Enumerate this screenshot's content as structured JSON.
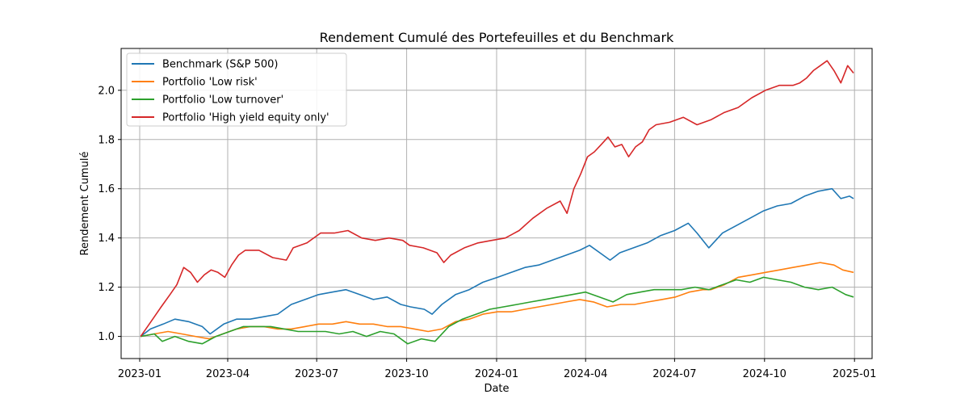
{
  "chart_data": {
    "type": "line",
    "title": "Rendement Cumulé des Portefeuilles et du Benchmark",
    "xlabel": "Date",
    "ylabel": "Rendement Cumulé",
    "xlim": [
      "2022-12-13",
      "2025-01-19"
    ],
    "ylim": [
      0.91,
      2.17
    ],
    "grid": true,
    "legend_position": "top-left",
    "x_ticks": [
      {
        "value": "2023-01-01",
        "label": "2023-01"
      },
      {
        "value": "2023-04-01",
        "label": "2023-04"
      },
      {
        "value": "2023-07-01",
        "label": "2023-07"
      },
      {
        "value": "2023-10-01",
        "label": "2023-10"
      },
      {
        "value": "2024-01-01",
        "label": "2024-01"
      },
      {
        "value": "2024-04-01",
        "label": "2024-04"
      },
      {
        "value": "2024-07-01",
        "label": "2024-07"
      },
      {
        "value": "2024-10-01",
        "label": "2024-10"
      },
      {
        "value": "2025-01-01",
        "label": "2025-01"
      }
    ],
    "y_ticks": [
      {
        "value": 1.0,
        "label": "1.0"
      },
      {
        "value": 1.2,
        "label": "1.2"
      },
      {
        "value": 1.4,
        "label": "1.4"
      },
      {
        "value": 1.6,
        "label": "1.6"
      },
      {
        "value": 1.8,
        "label": "1.8"
      },
      {
        "value": 2.0,
        "label": "2.0"
      }
    ],
    "series": [
      {
        "name": "Benchmark (S&P 500)",
        "color": "#1f77b4",
        "points": [
          [
            "2023-01-02",
            1.0
          ],
          [
            "2023-01-12",
            1.03
          ],
          [
            "2023-01-25",
            1.05
          ],
          [
            "2023-02-06",
            1.07
          ],
          [
            "2023-02-20",
            1.06
          ],
          [
            "2023-03-06",
            1.04
          ],
          [
            "2023-03-14",
            1.01
          ],
          [
            "2023-03-28",
            1.05
          ],
          [
            "2023-04-10",
            1.07
          ],
          [
            "2023-04-24",
            1.07
          ],
          [
            "2023-05-08",
            1.08
          ],
          [
            "2023-05-22",
            1.09
          ],
          [
            "2023-06-05",
            1.13
          ],
          [
            "2023-06-19",
            1.15
          ],
          [
            "2023-07-03",
            1.17
          ],
          [
            "2023-07-17",
            1.18
          ],
          [
            "2023-07-31",
            1.19
          ],
          [
            "2023-08-14",
            1.17
          ],
          [
            "2023-08-28",
            1.15
          ],
          [
            "2023-09-11",
            1.16
          ],
          [
            "2023-09-25",
            1.13
          ],
          [
            "2023-10-05",
            1.12
          ],
          [
            "2023-10-19",
            1.11
          ],
          [
            "2023-10-27",
            1.09
          ],
          [
            "2023-11-06",
            1.13
          ],
          [
            "2023-11-20",
            1.17
          ],
          [
            "2023-12-04",
            1.19
          ],
          [
            "2023-12-18",
            1.22
          ],
          [
            "2024-01-02",
            1.24
          ],
          [
            "2024-01-16",
            1.26
          ],
          [
            "2024-01-30",
            1.28
          ],
          [
            "2024-02-13",
            1.29
          ],
          [
            "2024-02-27",
            1.31
          ],
          [
            "2024-03-12",
            1.33
          ],
          [
            "2024-03-26",
            1.35
          ],
          [
            "2024-04-05",
            1.37
          ],
          [
            "2024-04-19",
            1.33
          ],
          [
            "2024-04-26",
            1.31
          ],
          [
            "2024-05-06",
            1.34
          ],
          [
            "2024-05-20",
            1.36
          ],
          [
            "2024-06-03",
            1.38
          ],
          [
            "2024-06-17",
            1.41
          ],
          [
            "2024-07-01",
            1.43
          ],
          [
            "2024-07-15",
            1.46
          ],
          [
            "2024-07-24",
            1.42
          ],
          [
            "2024-08-05",
            1.36
          ],
          [
            "2024-08-19",
            1.42
          ],
          [
            "2024-09-02",
            1.45
          ],
          [
            "2024-09-16",
            1.48
          ],
          [
            "2024-09-30",
            1.51
          ],
          [
            "2024-10-14",
            1.53
          ],
          [
            "2024-10-28",
            1.54
          ],
          [
            "2024-11-11",
            1.57
          ],
          [
            "2024-11-25",
            1.59
          ],
          [
            "2024-12-09",
            1.6
          ],
          [
            "2024-12-18",
            1.56
          ],
          [
            "2024-12-27",
            1.57
          ],
          [
            "2024-12-31",
            1.56
          ]
        ]
      },
      {
        "name": "Portfolio 'Low risk'",
        "color": "#ff7f0e",
        "points": [
          [
            "2023-01-02",
            1.0
          ],
          [
            "2023-01-16",
            1.01
          ],
          [
            "2023-01-30",
            1.02
          ],
          [
            "2023-02-13",
            1.01
          ],
          [
            "2023-02-27",
            1.0
          ],
          [
            "2023-03-13",
            0.99
          ],
          [
            "2023-03-27",
            1.01
          ],
          [
            "2023-04-10",
            1.03
          ],
          [
            "2023-04-24",
            1.04
          ],
          [
            "2023-05-08",
            1.04
          ],
          [
            "2023-05-22",
            1.03
          ],
          [
            "2023-06-05",
            1.03
          ],
          [
            "2023-06-19",
            1.04
          ],
          [
            "2023-07-03",
            1.05
          ],
          [
            "2023-07-17",
            1.05
          ],
          [
            "2023-07-31",
            1.06
          ],
          [
            "2023-08-14",
            1.05
          ],
          [
            "2023-08-28",
            1.05
          ],
          [
            "2023-09-11",
            1.04
          ],
          [
            "2023-09-25",
            1.04
          ],
          [
            "2023-10-09",
            1.03
          ],
          [
            "2023-10-23",
            1.02
          ],
          [
            "2023-11-06",
            1.03
          ],
          [
            "2023-11-20",
            1.06
          ],
          [
            "2023-12-04",
            1.07
          ],
          [
            "2023-12-18",
            1.09
          ],
          [
            "2024-01-02",
            1.1
          ],
          [
            "2024-01-16",
            1.1
          ],
          [
            "2024-01-30",
            1.11
          ],
          [
            "2024-02-13",
            1.12
          ],
          [
            "2024-02-27",
            1.13
          ],
          [
            "2024-03-12",
            1.14
          ],
          [
            "2024-03-26",
            1.15
          ],
          [
            "2024-04-09",
            1.14
          ],
          [
            "2024-04-23",
            1.12
          ],
          [
            "2024-05-07",
            1.13
          ],
          [
            "2024-05-21",
            1.13
          ],
          [
            "2024-06-04",
            1.14
          ],
          [
            "2024-06-18",
            1.15
          ],
          [
            "2024-07-02",
            1.16
          ],
          [
            "2024-07-16",
            1.18
          ],
          [
            "2024-07-30",
            1.19
          ],
          [
            "2024-08-07",
            1.19
          ],
          [
            "2024-08-21",
            1.21
          ],
          [
            "2024-09-04",
            1.24
          ],
          [
            "2024-09-18",
            1.25
          ],
          [
            "2024-10-02",
            1.26
          ],
          [
            "2024-10-16",
            1.27
          ],
          [
            "2024-10-30",
            1.28
          ],
          [
            "2024-11-13",
            1.29
          ],
          [
            "2024-11-27",
            1.3
          ],
          [
            "2024-12-11",
            1.29
          ],
          [
            "2024-12-20",
            1.27
          ],
          [
            "2024-12-31",
            1.26
          ]
        ]
      },
      {
        "name": "Portfolio 'Low turnover'",
        "color": "#2ca02c",
        "points": [
          [
            "2023-01-02",
            1.0
          ],
          [
            "2023-01-16",
            1.01
          ],
          [
            "2023-01-24",
            0.98
          ],
          [
            "2023-02-06",
            1.0
          ],
          [
            "2023-02-20",
            0.98
          ],
          [
            "2023-03-06",
            0.97
          ],
          [
            "2023-03-20",
            1.0
          ],
          [
            "2023-04-03",
            1.02
          ],
          [
            "2023-04-17",
            1.04
          ],
          [
            "2023-05-01",
            1.04
          ],
          [
            "2023-05-15",
            1.04
          ],
          [
            "2023-05-29",
            1.03
          ],
          [
            "2023-06-12",
            1.02
          ],
          [
            "2023-06-26",
            1.02
          ],
          [
            "2023-07-10",
            1.02
          ],
          [
            "2023-07-24",
            1.01
          ],
          [
            "2023-08-07",
            1.02
          ],
          [
            "2023-08-21",
            1.0
          ],
          [
            "2023-09-04",
            1.02
          ],
          [
            "2023-09-18",
            1.01
          ],
          [
            "2023-10-02",
            0.97
          ],
          [
            "2023-10-16",
            0.99
          ],
          [
            "2023-10-30",
            0.98
          ],
          [
            "2023-11-13",
            1.04
          ],
          [
            "2023-11-27",
            1.07
          ],
          [
            "2023-12-11",
            1.09
          ],
          [
            "2023-12-25",
            1.11
          ],
          [
            "2024-01-08",
            1.12
          ],
          [
            "2024-01-22",
            1.13
          ],
          [
            "2024-02-05",
            1.14
          ],
          [
            "2024-02-19",
            1.15
          ],
          [
            "2024-03-04",
            1.16
          ],
          [
            "2024-03-18",
            1.17
          ],
          [
            "2024-04-01",
            1.18
          ],
          [
            "2024-04-15",
            1.16
          ],
          [
            "2024-04-29",
            1.14
          ],
          [
            "2024-05-13",
            1.17
          ],
          [
            "2024-05-27",
            1.18
          ],
          [
            "2024-06-10",
            1.19
          ],
          [
            "2024-06-24",
            1.19
          ],
          [
            "2024-07-08",
            1.19
          ],
          [
            "2024-07-22",
            1.2
          ],
          [
            "2024-08-05",
            1.19
          ],
          [
            "2024-08-19",
            1.21
          ],
          [
            "2024-09-02",
            1.23
          ],
          [
            "2024-09-16",
            1.22
          ],
          [
            "2024-09-30",
            1.24
          ],
          [
            "2024-10-14",
            1.23
          ],
          [
            "2024-10-28",
            1.22
          ],
          [
            "2024-11-11",
            1.2
          ],
          [
            "2024-11-25",
            1.19
          ],
          [
            "2024-12-09",
            1.2
          ],
          [
            "2024-12-23",
            1.17
          ],
          [
            "2024-12-31",
            1.16
          ]
        ]
      },
      {
        "name": "Portfolio 'High yield equity only'",
        "color": "#d62728",
        "points": [
          [
            "2023-01-02",
            1.0
          ],
          [
            "2023-01-09",
            1.04
          ],
          [
            "2023-01-16",
            1.08
          ],
          [
            "2023-01-23",
            1.12
          ],
          [
            "2023-02-01",
            1.17
          ],
          [
            "2023-02-08",
            1.21
          ],
          [
            "2023-02-15",
            1.28
          ],
          [
            "2023-02-22",
            1.26
          ],
          [
            "2023-03-01",
            1.22
          ],
          [
            "2023-03-08",
            1.25
          ],
          [
            "2023-03-15",
            1.27
          ],
          [
            "2023-03-22",
            1.26
          ],
          [
            "2023-03-29",
            1.24
          ],
          [
            "2023-04-05",
            1.29
          ],
          [
            "2023-04-12",
            1.33
          ],
          [
            "2023-04-19",
            1.35
          ],
          [
            "2023-05-03",
            1.35
          ],
          [
            "2023-05-17",
            1.32
          ],
          [
            "2023-05-31",
            1.31
          ],
          [
            "2023-06-07",
            1.36
          ],
          [
            "2023-06-21",
            1.38
          ],
          [
            "2023-07-05",
            1.42
          ],
          [
            "2023-07-19",
            1.42
          ],
          [
            "2023-08-02",
            1.43
          ],
          [
            "2023-08-16",
            1.4
          ],
          [
            "2023-08-30",
            1.39
          ],
          [
            "2023-09-13",
            1.4
          ],
          [
            "2023-09-27",
            1.39
          ],
          [
            "2023-10-04",
            1.37
          ],
          [
            "2023-10-18",
            1.36
          ],
          [
            "2023-11-01",
            1.34
          ],
          [
            "2023-11-08",
            1.3
          ],
          [
            "2023-11-15",
            1.33
          ],
          [
            "2023-11-29",
            1.36
          ],
          [
            "2023-12-13",
            1.38
          ],
          [
            "2023-12-27",
            1.39
          ],
          [
            "2024-01-10",
            1.4
          ],
          [
            "2024-01-24",
            1.43
          ],
          [
            "2024-02-07",
            1.48
          ],
          [
            "2024-02-21",
            1.52
          ],
          [
            "2024-03-06",
            1.55
          ],
          [
            "2024-03-13",
            1.5
          ],
          [
            "2024-03-20",
            1.6
          ],
          [
            "2024-03-27",
            1.66
          ],
          [
            "2024-04-03",
            1.73
          ],
          [
            "2024-04-10",
            1.75
          ],
          [
            "2024-04-17",
            1.78
          ],
          [
            "2024-04-24",
            1.81
          ],
          [
            "2024-05-01",
            1.77
          ],
          [
            "2024-05-08",
            1.78
          ],
          [
            "2024-05-15",
            1.73
          ],
          [
            "2024-05-22",
            1.77
          ],
          [
            "2024-05-29",
            1.79
          ],
          [
            "2024-06-05",
            1.84
          ],
          [
            "2024-06-12",
            1.86
          ],
          [
            "2024-06-26",
            1.87
          ],
          [
            "2024-07-10",
            1.89
          ],
          [
            "2024-07-24",
            1.86
          ],
          [
            "2024-08-07",
            1.88
          ],
          [
            "2024-08-21",
            1.91
          ],
          [
            "2024-09-04",
            1.93
          ],
          [
            "2024-09-18",
            1.97
          ],
          [
            "2024-10-02",
            2.0
          ],
          [
            "2024-10-16",
            2.02
          ],
          [
            "2024-10-30",
            2.02
          ],
          [
            "2024-11-06",
            2.03
          ],
          [
            "2024-11-13",
            2.05
          ],
          [
            "2024-11-20",
            2.08
          ],
          [
            "2024-11-27",
            2.1
          ],
          [
            "2024-12-04",
            2.12
          ],
          [
            "2024-12-11",
            2.08
          ],
          [
            "2024-12-18",
            2.03
          ],
          [
            "2024-12-25",
            2.1
          ],
          [
            "2024-12-31",
            2.07
          ]
        ]
      }
    ]
  }
}
